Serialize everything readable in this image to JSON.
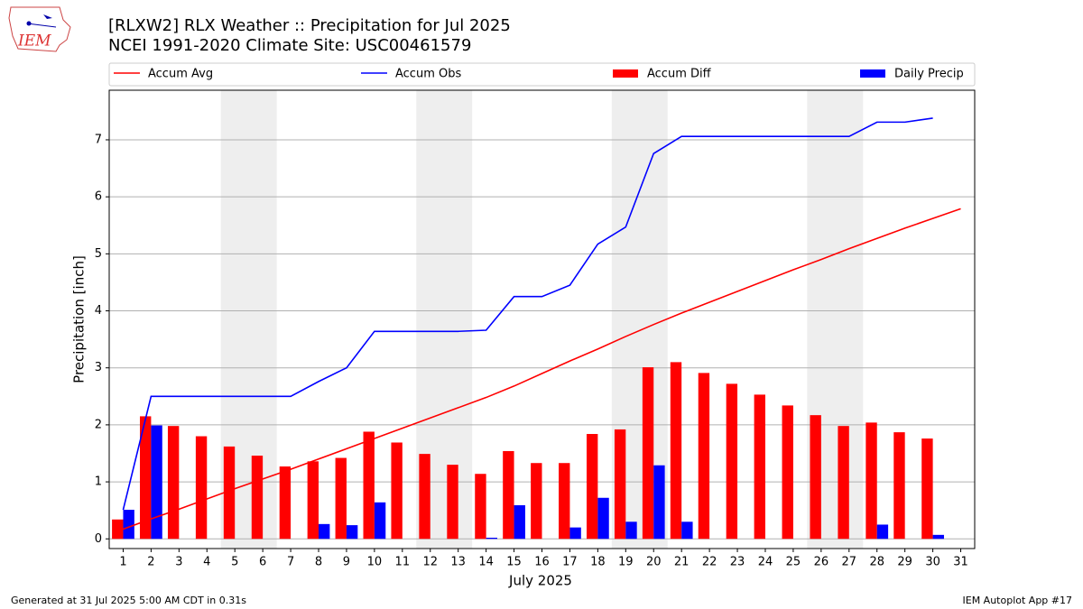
{
  "chart_data": {
    "type": "bar",
    "title": "[RLXW2] RLX Weather :: Precipitation for Jul 2025",
    "subtitle": "NCEI 1991-2020 Climate Site: USC00461579",
    "xlabel": "July 2025",
    "ylabel": "Precipitation [inch]",
    "logo_text": "IEM",
    "footer_left": "Generated at 31 Jul 2025 5:00 AM CDT in 0.31s",
    "footer_right": "IEM Autoplot App #17",
    "x": [
      1,
      2,
      3,
      4,
      5,
      6,
      7,
      8,
      9,
      10,
      11,
      12,
      13,
      14,
      15,
      16,
      17,
      18,
      19,
      20,
      21,
      22,
      23,
      24,
      25,
      26,
      27,
      28,
      29,
      30,
      31
    ],
    "xlim": [
      0.5,
      31.5
    ],
    "xticks": [
      1,
      2,
      3,
      4,
      5,
      6,
      7,
      8,
      9,
      10,
      11,
      12,
      13,
      14,
      15,
      16,
      17,
      18,
      19,
      20,
      21,
      22,
      23,
      24,
      25,
      26,
      27,
      28,
      29,
      30,
      31
    ],
    "ylim": [
      -0.17,
      7.87
    ],
    "yticks": [
      0,
      1,
      2,
      3,
      4,
      5,
      6,
      7
    ],
    "grid": true,
    "shaded_spans": [
      [
        4.5,
        6.5
      ],
      [
        11.5,
        13.5
      ],
      [
        18.5,
        20.5
      ],
      [
        25.5,
        27.5
      ]
    ],
    "shade_color": "#eeeeee",
    "series": [
      {
        "name": "Accum Avg",
        "kind": "line",
        "color": "#ff0000",
        "values": [
          0.17,
          0.35,
          0.52,
          0.7,
          0.88,
          1.05,
          1.22,
          1.4,
          1.58,
          1.76,
          1.94,
          2.12,
          2.3,
          2.48,
          2.68,
          2.9,
          3.12,
          3.33,
          3.55,
          3.76,
          3.96,
          4.15,
          4.34,
          4.53,
          4.72,
          4.9,
          5.09,
          5.27,
          5.45,
          5.62,
          5.79
        ]
      },
      {
        "name": "Accum Obs",
        "kind": "line",
        "color": "#0000ff",
        "values": [
          0.51,
          2.5,
          2.5,
          2.5,
          2.5,
          2.5,
          2.5,
          2.76,
          3.0,
          3.64,
          3.64,
          3.64,
          3.64,
          3.66,
          4.25,
          4.25,
          4.45,
          5.17,
          5.47,
          6.76,
          7.06,
          7.06,
          7.06,
          7.06,
          7.06,
          7.06,
          7.06,
          7.31,
          7.31,
          7.38,
          null
        ]
      },
      {
        "name": "Accum Diff",
        "kind": "bar",
        "color": "#ff0000",
        "values": [
          0.34,
          2.15,
          1.98,
          1.8,
          1.62,
          1.46,
          1.27,
          1.36,
          1.42,
          1.88,
          1.69,
          1.49,
          1.3,
          1.14,
          1.54,
          1.33,
          1.33,
          1.84,
          1.92,
          3.01,
          3.1,
          2.91,
          2.72,
          2.53,
          2.34,
          2.17,
          1.98,
          2.04,
          1.87,
          1.76,
          null
        ]
      },
      {
        "name": "Daily Precip",
        "kind": "bar",
        "color": "#0000ff",
        "values": [
          0.51,
          1.99,
          0,
          0,
          0,
          0,
          0,
          0.26,
          0.24,
          0.64,
          0,
          0,
          0,
          0.02,
          0.59,
          0,
          0.2,
          0.72,
          0.3,
          1.29,
          0.3,
          0,
          0,
          0,
          0,
          0,
          0,
          0.25,
          0,
          0.07,
          null
        ]
      }
    ]
  }
}
